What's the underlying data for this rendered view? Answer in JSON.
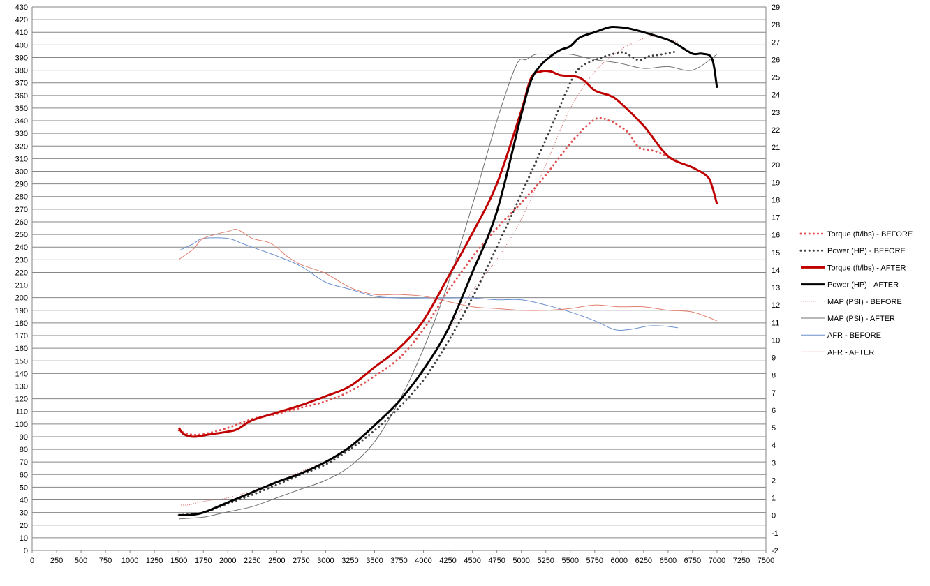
{
  "chart_data": {
    "type": "line",
    "title": "",
    "xlabel": "",
    "ylabel": "",
    "y2label": "",
    "grid": "horizontal",
    "legend_position": "right",
    "xlim": [
      0,
      7500
    ],
    "xticks": [
      0,
      250,
      500,
      750,
      1000,
      1250,
      1500,
      1750,
      2000,
      2250,
      2500,
      2750,
      3000,
      3250,
      3500,
      3750,
      4000,
      4250,
      4500,
      4750,
      5000,
      5250,
      5500,
      5750,
      6000,
      6250,
      6500,
      6750,
      7000,
      7250,
      7500
    ],
    "ylim": [
      0,
      430
    ],
    "yticks": [
      0,
      10,
      20,
      30,
      40,
      50,
      60,
      70,
      80,
      90,
      100,
      110,
      120,
      130,
      140,
      150,
      160,
      170,
      180,
      190,
      200,
      210,
      220,
      230,
      240,
      250,
      260,
      270,
      280,
      290,
      300,
      310,
      320,
      330,
      340,
      350,
      360,
      370,
      380,
      390,
      400,
      410,
      420,
      430
    ],
    "y2lim": [
      -2,
      29
    ],
    "y2ticks": [
      -2,
      -1,
      0,
      1,
      2,
      3,
      4,
      5,
      6,
      7,
      8,
      9,
      10,
      11,
      12,
      13,
      14,
      15,
      16,
      17,
      18,
      19,
      20,
      21,
      22,
      23,
      24,
      25,
      26,
      27,
      28,
      29
    ],
    "series": [
      {
        "name": "Torque (ft/lbs) - BEFORE",
        "axis": "left",
        "color": "#e05050",
        "dash": "dotted",
        "width": 3,
        "x": [
          1500,
          1600,
          1750,
          2000,
          2250,
          2500,
          2750,
          3000,
          3250,
          3500,
          3750,
          4000,
          4250,
          4500,
          4750,
          5000,
          5250,
          5500,
          5750,
          5900,
          6000,
          6100,
          6200,
          6300,
          6400,
          6600
        ],
        "y": [
          95,
          92,
          92,
          97,
          104,
          108,
          113,
          118,
          126,
          138,
          152,
          175,
          205,
          232,
          255,
          275,
          297,
          322,
          341,
          340,
          336,
          330,
          319,
          317,
          315,
          308
        ]
      },
      {
        "name": "Power (HP) - BEFORE",
        "axis": "left",
        "color": "#404040",
        "dash": "dotted",
        "width": 3,
        "x": [
          1500,
          1750,
          2000,
          2250,
          2500,
          2750,
          3000,
          3250,
          3500,
          3750,
          4000,
          4250,
          4500,
          4750,
          5000,
          5250,
          5500,
          5600,
          5750,
          6000,
          6100,
          6200,
          6300,
          6400,
          6600
        ],
        "y": [
          28,
          30,
          37,
          44,
          52,
          60,
          68,
          80,
          95,
          113,
          135,
          165,
          200,
          240,
          282,
          325,
          370,
          382,
          388,
          394,
          392,
          388,
          391,
          392,
          395
        ]
      },
      {
        "name": "Torque (ft/lbs) - AFTER",
        "axis": "left",
        "color": "#c00000",
        "dash": "solid",
        "width": 3,
        "x": [
          1500,
          1550,
          1650,
          1750,
          2000,
          2100,
          2250,
          2500,
          2750,
          3000,
          3250,
          3500,
          3750,
          4000,
          4250,
          4500,
          4750,
          5000,
          5100,
          5200,
          5300,
          5400,
          5600,
          5750,
          5900,
          6000,
          6250,
          6500,
          6750,
          6900,
          6950,
          7000
        ],
        "y": [
          97,
          92,
          90,
          91,
          94,
          96,
          103,
          109,
          115,
          122,
          130,
          145,
          160,
          182,
          216,
          251,
          290,
          348,
          374,
          379,
          379,
          376,
          374,
          364,
          360,
          355,
          336,
          312,
          303,
          296,
          288,
          274
        ]
      },
      {
        "name": "Power (HP) - AFTER",
        "axis": "left",
        "color": "#000000",
        "dash": "solid",
        "width": 3,
        "x": [
          1500,
          1600,
          1750,
          2000,
          2250,
          2500,
          2750,
          3000,
          3250,
          3500,
          3750,
          4000,
          4250,
          4500,
          4750,
          5000,
          5100,
          5200,
          5300,
          5400,
          5500,
          5600,
          5750,
          5900,
          6000,
          6100,
          6250,
          6500,
          6600,
          6750,
          6850,
          6950,
          7000
        ],
        "y": [
          28,
          28,
          30,
          38,
          46,
          54,
          61,
          70,
          82,
          99,
          118,
          143,
          175,
          220,
          268,
          345,
          372,
          384,
          391,
          396,
          399,
          406,
          410,
          414,
          414,
          413,
          410,
          404,
          400,
          393,
          393,
          389,
          366
        ]
      },
      {
        "name": "MAP (PSI) - BEFORE",
        "axis": "right",
        "color": "#d06060",
        "dash": "dotted",
        "width": 1,
        "x": [
          1500,
          1600,
          1750,
          2000,
          2250,
          2500,
          2750,
          3000,
          3250,
          3500,
          3750,
          4000,
          4250,
          4500,
          4750,
          5000,
          5250,
          5500,
          5750,
          6000,
          6250,
          6400,
          6600
        ],
        "y": [
          0.6,
          0.6,
          0.8,
          1.0,
          1.4,
          1.9,
          2.5,
          3.1,
          3.9,
          5.1,
          6.5,
          8.3,
          10.5,
          12.8,
          14.6,
          16.9,
          20.0,
          23.2,
          25.3,
          26.5,
          27.2,
          27.3,
          27.0
        ]
      },
      {
        "name": "MAP (PSI) - AFTER",
        "axis": "right",
        "color": "#707070",
        "dash": "solid",
        "width": 1,
        "x": [
          1500,
          1750,
          2000,
          2250,
          2500,
          2750,
          3000,
          3250,
          3500,
          3750,
          4000,
          4250,
          4500,
          4750,
          4950,
          5050,
          5150,
          5300,
          5500,
          5750,
          6000,
          6250,
          6500,
          6750,
          7000
        ],
        "y": [
          -0.2,
          -0.1,
          0.2,
          0.5,
          1.0,
          1.5,
          2.0,
          2.8,
          4.2,
          6.5,
          9.5,
          13.2,
          17.7,
          22.5,
          25.7,
          26.0,
          26.3,
          26.3,
          26.3,
          26.0,
          25.8,
          25.5,
          25.6,
          25.4,
          26.3
        ]
      },
      {
        "name": "AFR - BEFORE",
        "axis": "right",
        "color": "#6a8fce",
        "dash": "solid",
        "width": 1,
        "x": [
          1500,
          1650,
          1750,
          2000,
          2150,
          2300,
          2500,
          2750,
          3000,
          3250,
          3500,
          3750,
          4000,
          4250,
          4500,
          4750,
          5000,
          5250,
          5500,
          5750,
          5950,
          6100,
          6300,
          6450,
          6600
        ],
        "y": [
          15.1,
          15.5,
          15.8,
          15.8,
          15.5,
          15.2,
          14.8,
          14.2,
          13.3,
          12.9,
          12.5,
          12.4,
          12.4,
          12.4,
          12.4,
          12.3,
          12.3,
          12.0,
          11.6,
          11.1,
          10.6,
          10.6,
          10.8,
          10.8,
          10.7
        ]
      },
      {
        "name": "AFR - AFTER",
        "axis": "right",
        "color": "#e08070",
        "dash": "solid",
        "width": 1,
        "x": [
          1500,
          1650,
          1750,
          2000,
          2100,
          2250,
          2400,
          2500,
          2600,
          2750,
          3000,
          3250,
          3500,
          3750,
          4000,
          4250,
          4500,
          4750,
          5000,
          5250,
          5500,
          5750,
          6000,
          6250,
          6500,
          6750,
          7000
        ],
        "y": [
          14.6,
          15.2,
          15.8,
          16.2,
          16.3,
          15.8,
          15.6,
          15.3,
          14.8,
          14.3,
          13.8,
          13.0,
          12.6,
          12.6,
          12.5,
          12.2,
          11.9,
          11.8,
          11.7,
          11.7,
          11.8,
          12.0,
          11.9,
          11.9,
          11.7,
          11.6,
          11.1
        ]
      }
    ]
  }
}
